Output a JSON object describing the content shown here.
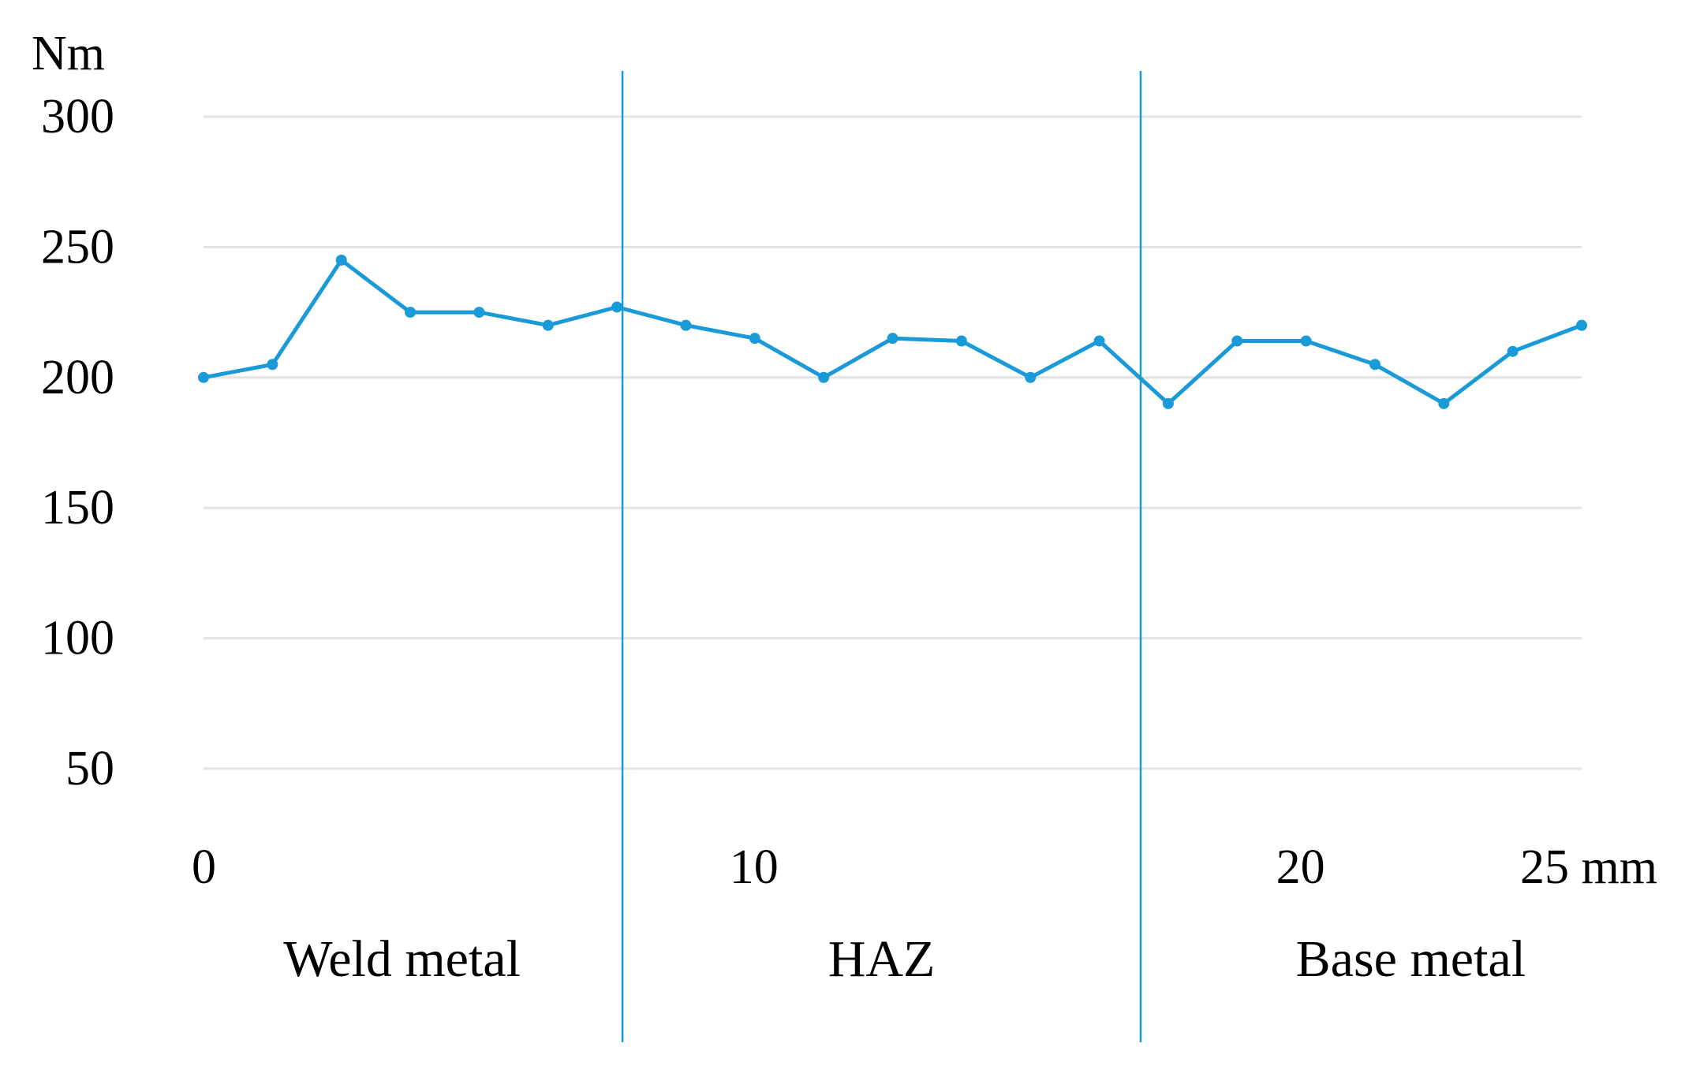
{
  "chart_data": {
    "type": "line",
    "y_unit_label": "Nm",
    "y_ticks": [
      "50",
      "100",
      "150",
      "200",
      "250",
      "300"
    ],
    "x_tick_labels": [
      {
        "value": 0,
        "label": "0"
      },
      {
        "value": 10,
        "label": "10"
      },
      {
        "value": 20,
        "label": "20"
      },
      {
        "value": 25,
        "label": "25 mm"
      }
    ],
    "xlim": [
      0,
      25
    ],
    "ylim": [
      50,
      300
    ],
    "grid": "horizontal",
    "series": [
      {
        "color": "#1A9AD6",
        "x": [
          0,
          1.25,
          2.5,
          3.75,
          5,
          6.25,
          7.5,
          8.75,
          10,
          11.25,
          12.5,
          13.75,
          15,
          16.25,
          17.5,
          18.75,
          20,
          21.25,
          22.5,
          23.75,
          25
        ],
        "values": [
          200,
          205,
          245,
          225,
          225,
          220,
          227,
          220,
          215,
          200,
          215,
          214,
          200,
          214,
          190,
          214,
          214,
          205,
          190,
          210,
          220
        ]
      }
    ],
    "zone_dividers": [
      7.6,
      17.0
    ],
    "divider_color": "#1A9AD6",
    "grid_color": "#E3E3E3",
    "region_labels": [
      {
        "center": 3.6,
        "label": "Weld metal"
      },
      {
        "center": 12.3,
        "label": "HAZ"
      },
      {
        "center": 21.9,
        "label": "Base metal"
      }
    ]
  }
}
